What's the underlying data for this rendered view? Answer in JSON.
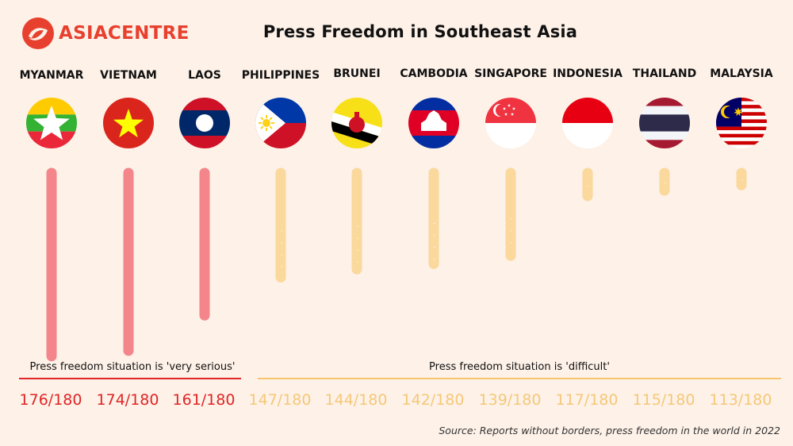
{
  "logo": {
    "text": "ASIACENTRE",
    "accent_color": "#e8402e"
  },
  "title": "Press Freedom in Southeast Asia",
  "chart_data": {
    "type": "bar",
    "orientation": "vertical-lollipop",
    "categories": [
      "MYANMAR",
      "VIETNAM",
      "LAOS",
      "PHILIPPINES",
      "BRUNEI",
      "CAMBODIA",
      "SINGAPORE",
      "INDONESIA",
      "THAILAND",
      "MALAYSIA"
    ],
    "values": [
      176,
      174,
      161,
      147,
      144,
      142,
      139,
      117,
      115,
      113
    ],
    "total": 180,
    "value_labels": [
      "176/180",
      "174/180",
      "161/180",
      "147/180",
      "144/180",
      "142/180",
      "139/180",
      "117/180",
      "115/180",
      "113/180"
    ],
    "groups": [
      {
        "label": "Press freedom situation is 'very serious'",
        "color": "#f4858a",
        "text_color": "#e02525",
        "line_color": "#e02525",
        "members": [
          "MYANMAR",
          "VIETNAM",
          "LAOS"
        ]
      },
      {
        "label": "Press freedom situation is 'difficult'",
        "color": "#fbd89c",
        "text_color": "#f5c878",
        "line_color": "#f7c56e",
        "members": [
          "PHILIPPINES",
          "BRUNEI",
          "CAMBODIA",
          "SINGAPORE",
          "INDONESIA",
          "THAILAND",
          "MALAYSIA"
        ]
      }
    ],
    "flags": [
      "myanmar-flag",
      "vietnam-flag",
      "laos-flag",
      "philippines-flag",
      "brunei-flag",
      "cambodia-flag",
      "singapore-flag",
      "indonesia-flag",
      "thailand-flag",
      "malaysia-flag"
    ]
  },
  "source": "Source: Reports without borders, press freedom in the world in 2022"
}
